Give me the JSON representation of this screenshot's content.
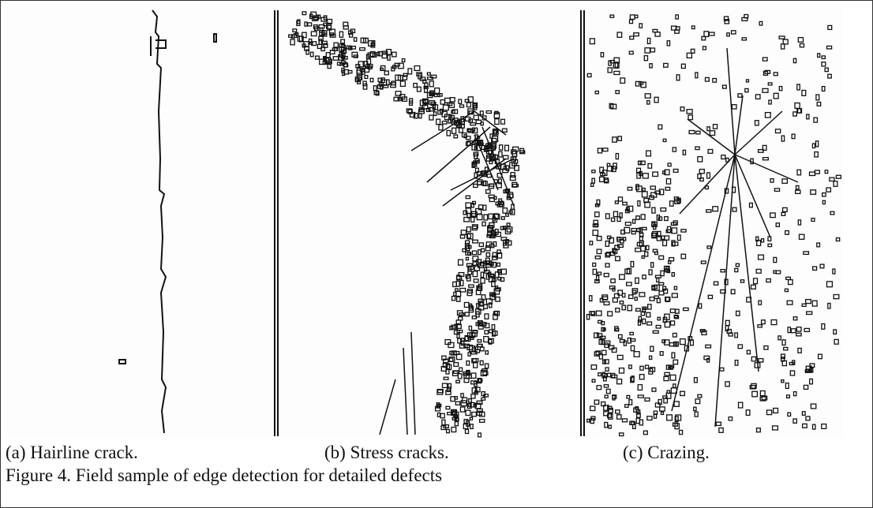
{
  "panels": [
    {
      "caption": "(a) Hairline crack."
    },
    {
      "caption": "(b) Stress cracks."
    },
    {
      "caption": "(c) Crazing."
    }
  ],
  "figure_caption": "Figure 4. Field sample of edge detection for detailed defects"
}
